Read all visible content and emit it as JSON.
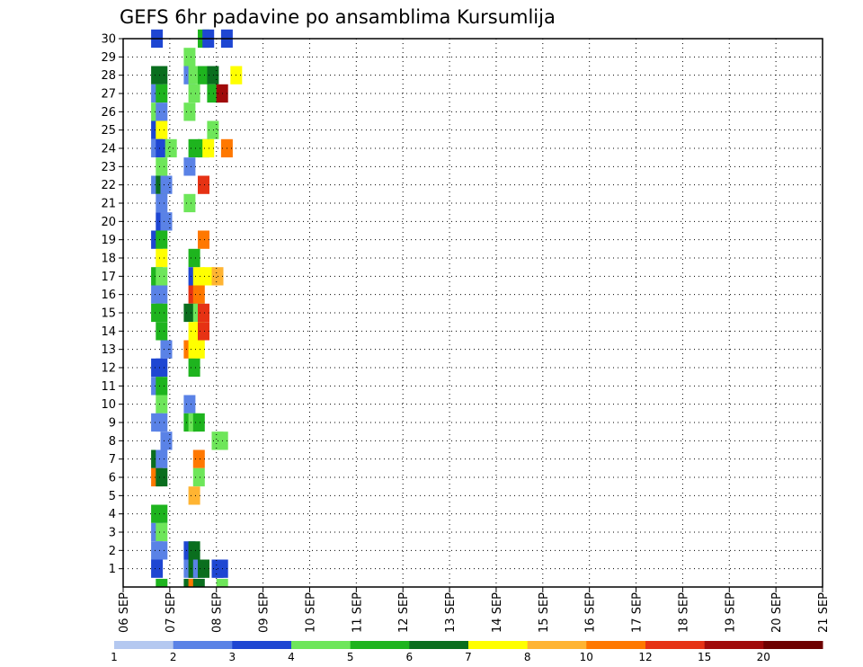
{
  "chart_data": {
    "type": "heatmap",
    "title": "GEFS 6hr padavine po ansamblima Kursumlija",
    "xlabel": "",
    "ylabel": "",
    "x_tick_labels": [
      "06 SEP",
      "07 SEP",
      "08 SEP",
      "09 SEP",
      "10 SEP",
      "11 SEP",
      "12 SEP",
      "13 SEP",
      "14 SEP",
      "15 SEP",
      "16 SEP",
      "17 SEP",
      "18 SEP",
      "19 SEP",
      "20 SEP",
      "21 SEP"
    ],
    "x_range_days": [
      6,
      21
    ],
    "y_tick_labels": [
      "1",
      "2",
      "3",
      "4",
      "5",
      "6",
      "7",
      "8",
      "9",
      "10",
      "11",
      "12",
      "13",
      "14",
      "15",
      "16",
      "17",
      "18",
      "19",
      "20",
      "21",
      "22",
      "23",
      "24",
      "25",
      "26",
      "27",
      "28",
      "29",
      "30"
    ],
    "ylim": [
      0,
      30
    ],
    "grid": true,
    "colorbar": {
      "labels": [
        "1",
        "2",
        "3",
        "4",
        "5",
        "6",
        "7",
        "8",
        "10",
        "12",
        "15",
        "20"
      ],
      "colors": [
        "#b4c8f0",
        "#5a82e6",
        "#1e46d2",
        "#6ee65a",
        "#1eb41e",
        "#0a6e1e",
        "#ffff00",
        "#ffb432",
        "#ff7800",
        "#e63214",
        "#a00a0a",
        "#6e0000"
      ]
    },
    "cells_note_units": "day-of-september, member, category index",
    "cells": [
      [
        6.6,
        30,
        2
      ],
      [
        7.6,
        30,
        4
      ],
      [
        7.7,
        30,
        2
      ],
      [
        8.1,
        30,
        2
      ],
      [
        7.3,
        29,
        3
      ],
      [
        6.6,
        28,
        5
      ],
      [
        6.7,
        28,
        5
      ],
      [
        7.3,
        28,
        1
      ],
      [
        7.4,
        28,
        3
      ],
      [
        7.6,
        28,
        4
      ],
      [
        7.8,
        28,
        5
      ],
      [
        8.3,
        28,
        6
      ],
      [
        6.6,
        27,
        1
      ],
      [
        6.7,
        27,
        4
      ],
      [
        7.4,
        27,
        3
      ],
      [
        7.8,
        27,
        4
      ],
      [
        8.0,
        27,
        10
      ],
      [
        6.6,
        26,
        3
      ],
      [
        6.7,
        26,
        1
      ],
      [
        7.3,
        26,
        3
      ],
      [
        6.6,
        25,
        2
      ],
      [
        6.7,
        25,
        6
      ],
      [
        7.8,
        25,
        3
      ],
      [
        6.6,
        24,
        1
      ],
      [
        6.7,
        24,
        2
      ],
      [
        6.9,
        24,
        3
      ],
      [
        7.4,
        24,
        4
      ],
      [
        7.6,
        24,
        4
      ],
      [
        7.7,
        24,
        6
      ],
      [
        8.1,
        24,
        8
      ],
      [
        6.7,
        23,
        3
      ],
      [
        7.3,
        23,
        1
      ],
      [
        6.6,
        22,
        1
      ],
      [
        6.7,
        22,
        5
      ],
      [
        6.8,
        22,
        1
      ],
      [
        7.6,
        22,
        9
      ],
      [
        6.7,
        21,
        1
      ],
      [
        7.3,
        21,
        3
      ],
      [
        6.7,
        20,
        2
      ],
      [
        6.8,
        20,
        1
      ],
      [
        6.6,
        19,
        2
      ],
      [
        6.7,
        19,
        4
      ],
      [
        7.6,
        19,
        8
      ],
      [
        6.7,
        18,
        6
      ],
      [
        7.4,
        18,
        4
      ],
      [
        6.6,
        17,
        4
      ],
      [
        6.7,
        17,
        3
      ],
      [
        7.4,
        17,
        2
      ],
      [
        7.5,
        17,
        6
      ],
      [
        7.7,
        17,
        6
      ],
      [
        7.9,
        17,
        7
      ],
      [
        6.6,
        16,
        1
      ],
      [
        6.7,
        16,
        1
      ],
      [
        7.4,
        16,
        9
      ],
      [
        7.5,
        16,
        8
      ],
      [
        6.6,
        15,
        4
      ],
      [
        6.7,
        15,
        4
      ],
      [
        7.3,
        15,
        5
      ],
      [
        7.5,
        15,
        3
      ],
      [
        7.6,
        15,
        9
      ],
      [
        6.7,
        14,
        4
      ],
      [
        7.4,
        14,
        6
      ],
      [
        7.5,
        14,
        6
      ],
      [
        7.6,
        14,
        9
      ],
      [
        6.8,
        13,
        1
      ],
      [
        7.3,
        13,
        8
      ],
      [
        7.4,
        13,
        6
      ],
      [
        7.5,
        13,
        6
      ],
      [
        6.6,
        12,
        2
      ],
      [
        6.7,
        12,
        2
      ],
      [
        7.4,
        12,
        4
      ],
      [
        6.6,
        11,
        1
      ],
      [
        6.7,
        11,
        4
      ],
      [
        6.7,
        10,
        3
      ],
      [
        7.3,
        10,
        1
      ],
      [
        6.6,
        9,
        1
      ],
      [
        6.7,
        9,
        1
      ],
      [
        7.3,
        9,
        4
      ],
      [
        7.4,
        9,
        3
      ],
      [
        7.5,
        9,
        4
      ],
      [
        6.8,
        8,
        1
      ],
      [
        7.9,
        8,
        3
      ],
      [
        8.0,
        8,
        3
      ],
      [
        6.6,
        7,
        5
      ],
      [
        6.7,
        7,
        1
      ],
      [
        7.5,
        7,
        8
      ],
      [
        6.6,
        6,
        8
      ],
      [
        6.7,
        6,
        5
      ],
      [
        7.5,
        6,
        3
      ],
      [
        7.4,
        5,
        7
      ],
      [
        6.6,
        4,
        4
      ],
      [
        6.7,
        4,
        4
      ],
      [
        6.6,
        3,
        1
      ],
      [
        6.7,
        3,
        3
      ],
      [
        6.6,
        2,
        1
      ],
      [
        6.7,
        2,
        1
      ],
      [
        7.3,
        2,
        2
      ],
      [
        7.4,
        2,
        5
      ],
      [
        6.6,
        1,
        2
      ],
      [
        7.3,
        1,
        1
      ],
      [
        7.4,
        1,
        5
      ],
      [
        7.5,
        1,
        1
      ],
      [
        7.6,
        1,
        5
      ],
      [
        7.9,
        1,
        2
      ],
      [
        8.0,
        1,
        2
      ],
      [
        6.7,
        0,
        4
      ],
      [
        7.3,
        0,
        5
      ],
      [
        7.4,
        0,
        8
      ],
      [
        7.5,
        0,
        5
      ],
      [
        8.0,
        0,
        3
      ]
    ]
  }
}
